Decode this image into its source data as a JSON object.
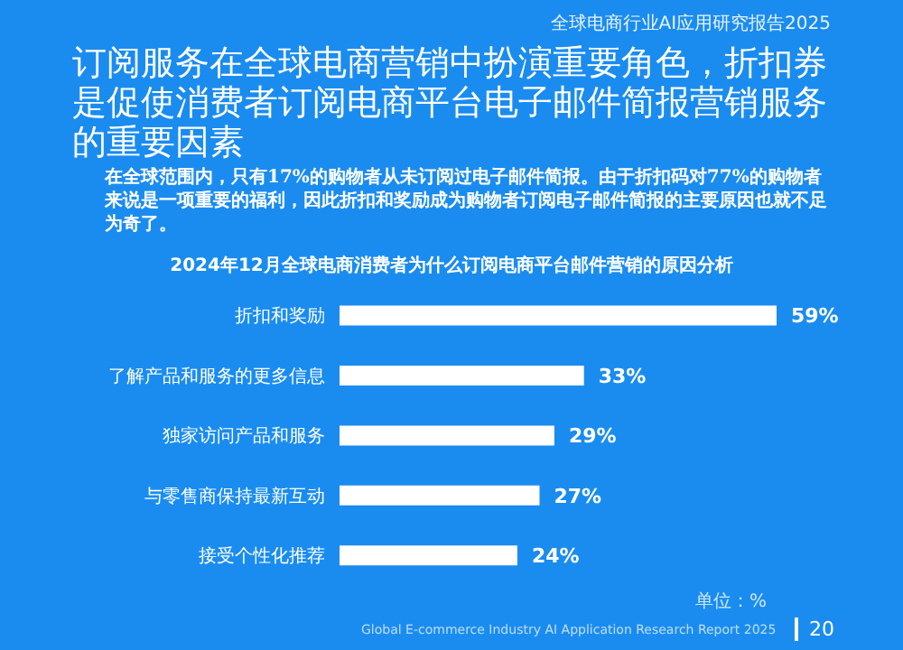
{
  "chart_data": {
    "type": "bar",
    "orientation": "horizontal",
    "title": "2024年12月全球电商消费者为什么订阅电商平台邮件营销的原因分析",
    "subtitle": "订阅服务在全球电商营销中扮演重要角色，折扣券是促使消费者订阅电商平台电子邮件简报营销服务的重要因素",
    "categories": [
      "折扣和奖励",
      "了解产品和服务的更多信息",
      "独家访问产品和服务",
      "与零售商保持最新互动",
      "接受个性化推荐"
    ],
    "values": [
      59,
      33,
      29,
      27,
      24
    ],
    "color": "#ffffff",
    "value_labels": [
      "59%",
      "33%",
      "29%",
      "27%",
      "24%"
    ],
    "annotations": [
      "全球电商行业AI应用研究报告2025",
      "在全球范围内，只有17%的购物者从未订阅过电子邮件简报。由于折扣码对77%的购物者来说是一项重要的福利，因此折扣和奖励成为购物者订阅电子邮件简报的主要原因也就不足为奇了。",
      "单位：%",
      "Global E-commerce Industry AI Application Research Report 2025",
      "20"
    ]
  }
}
